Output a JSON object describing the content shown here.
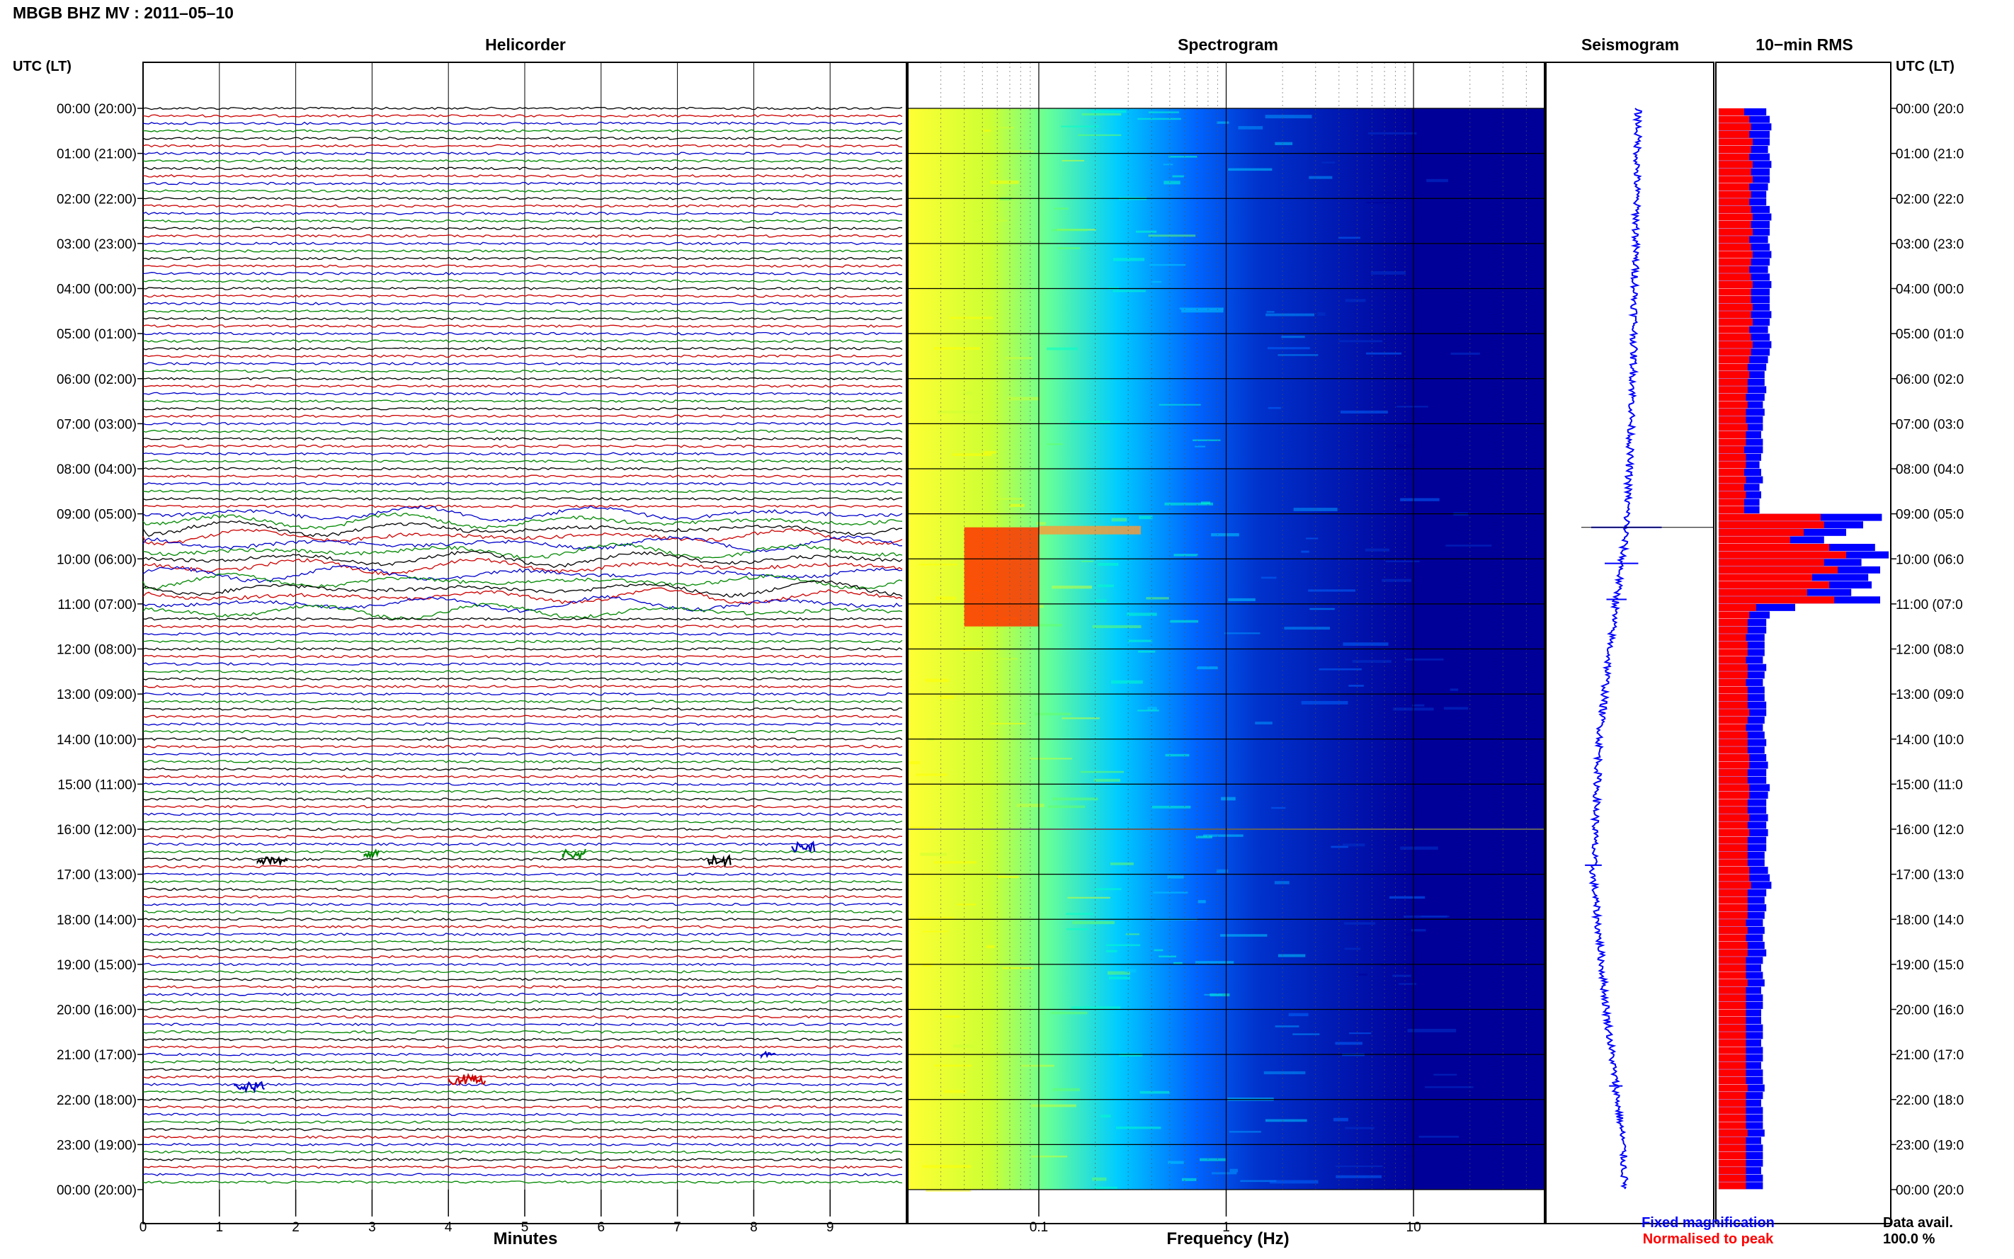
{
  "header": {
    "title": "MBGB BHZ MV : 2011–05–10"
  },
  "panels": {
    "helicorder": "Helicorder",
    "spectrogram": "Spectrogram",
    "seismogram": "Seismogram",
    "rms": "10−min RMS"
  },
  "axis_labels": {
    "utc_left": "UTC (LT)",
    "utc_right": "UTC (LT)",
    "minutes": "Minutes",
    "frequency": "Frequency (Hz)"
  },
  "legend": {
    "fixed": "Fixed magnification",
    "normalised": "Normalised to peak",
    "fixed_color": "#0000ff",
    "normalised_color": "#ff0000"
  },
  "data_avail": {
    "label": "Data avail.",
    "value": "100.0 %"
  },
  "colors": {
    "trace_cycle": [
      "#000000",
      "#cc0000",
      "#0000cc",
      "#008800"
    ],
    "spectrogram_low": "#ffff00",
    "spectrogram_mid": "#00ccff",
    "spectrogram_high": "#000099",
    "event_red": "#ff3300",
    "rms_fixed": "#0000ff",
    "rms_normalised": "#ff0000"
  },
  "time_ticks": [
    "00:00 (20:00)",
    "01:00 (21:00)",
    "02:00 (22:00)",
    "03:00 (23:00)",
    "04:00 (00:00)",
    "05:00 (01:00)",
    "06:00 (02:00)",
    "07:00 (03:00)",
    "08:00 (04:00)",
    "09:00 (05:00)",
    "10:00 (06:00)",
    "11:00 (07:00)",
    "12:00 (08:00)",
    "13:00 (09:00)",
    "14:00 (10:00)",
    "15:00 (11:00)",
    "16:00 (12:00)",
    "17:00 (13:00)",
    "18:00 (14:00)",
    "19:00 (15:00)",
    "20:00 (16:00)",
    "21:00 (17:00)",
    "22:00 (18:00)",
    "23:00 (19:00)",
    "00:00 (20:00)"
  ],
  "time_ticks_right": [
    "00:00 (20:0",
    "01:00 (21:0",
    "02:00 (22:0",
    "03:00 (23:0",
    "04:00 (00:0",
    "05:00 (01:0",
    "06:00 (02:0",
    "07:00 (03:0",
    "08:00 (04:0",
    "09:00 (05:0",
    "10:00 (06:0",
    "11:00 (07:0",
    "12:00 (08:0",
    "13:00 (09:0",
    "14:00 (10:0",
    "15:00 (11:0",
    "16:00 (12:0",
    "17:00 (13:0",
    "18:00 (14:0",
    "19:00 (15:0",
    "20:00 (16:0",
    "21:00 (17:0",
    "22:00 (18:0",
    "23:00 (19:0",
    "00:00 (20:0"
  ],
  "chart_data": {
    "type": "heatmap",
    "helicorder": {
      "x_ticks": [
        0,
        1,
        2,
        3,
        4,
        5,
        6,
        7,
        8,
        9
      ],
      "xlim": [
        0,
        10
      ],
      "rows_per_hour": 6,
      "active_window_hours": [
        9.0,
        11.2
      ],
      "events": [
        {
          "hour": 16.4,
          "minute": 8.5,
          "width_min": 0.3
        },
        {
          "hour": 16.55,
          "minute": 2.9,
          "width_min": 0.2
        },
        {
          "hour": 16.55,
          "minute": 5.5,
          "width_min": 0.3
        },
        {
          "hour": 16.7,
          "minute": 1.5,
          "width_min": 0.4
        },
        {
          "hour": 16.7,
          "minute": 7.4,
          "width_min": 0.3
        },
        {
          "hour": 21.0,
          "minute": 8.1,
          "width_min": 0.2
        },
        {
          "hour": 21.55,
          "minute": 4.0,
          "width_min": 0.5
        },
        {
          "hour": 21.7,
          "minute": 1.2,
          "width_min": 0.4
        }
      ]
    },
    "spectrogram": {
      "x_scale": "log",
      "x_ticks": [
        0.1,
        1,
        10
      ],
      "xlim": [
        0.02,
        50
      ],
      "ylim_hours": [
        0,
        24
      ],
      "event": {
        "hours": [
          9.3,
          11.5
        ],
        "freq_hz": [
          0.04,
          0.1
        ]
      }
    },
    "seismogram": {
      "offset_profile": [
        {
          "hour": 0,
          "offset": 0.55
        },
        {
          "hour": 6,
          "offset": 0.52
        },
        {
          "hour": 9.3,
          "offset": 0.48
        },
        {
          "hour": 12,
          "offset": 0.38
        },
        {
          "hour": 14,
          "offset": 0.32
        },
        {
          "hour": 17,
          "offset": 0.28
        },
        {
          "hour": 20,
          "offset": 0.36
        },
        {
          "hour": 23,
          "offset": 0.46
        },
        {
          "hour": 24,
          "offset": 0.47
        }
      ],
      "spikes": [
        {
          "hour": 9.3,
          "amplitude": 0.42
        },
        {
          "hour": 10.1,
          "amplitude": 0.2
        },
        {
          "hour": 10.9,
          "amplitude": 0.12
        },
        {
          "hour": 16.8,
          "amplitude": 0.1
        },
        {
          "hour": 21.7,
          "amplitude": 0.08
        }
      ]
    },
    "rms": {
      "bin_minutes": 10,
      "series": [
        {
          "name": "Fixed magnification",
          "values": [
            0.28,
            0.3,
            0.31,
            0.3,
            0.3,
            0.29,
            0.3,
            0.31,
            0.3,
            0.3,
            0.29,
            0.28,
            0.28,
            0.3,
            0.31,
            0.3,
            0.3,
            0.29,
            0.3,
            0.31,
            0.3,
            0.29,
            0.3,
            0.31,
            0.3,
            0.3,
            0.3,
            0.31,
            0.3,
            0.29,
            0.3,
            0.31,
            0.3,
            0.29,
            0.28,
            0.27,
            0.27,
            0.28,
            0.27,
            0.26,
            0.27,
            0.26,
            0.26,
            0.25,
            0.26,
            0.26,
            0.25,
            0.24,
            0.25,
            0.26,
            0.24,
            0.25,
            0.24,
            0.24,
            0.96,
            0.85,
            0.75,
            0.62,
            0.92,
            1.0,
            0.84,
            0.95,
            0.88,
            0.9,
            0.78,
            0.95,
            0.45,
            0.3,
            0.28,
            0.28,
            0.27,
            0.27,
            0.27,
            0.26,
            0.28,
            0.27,
            0.26,
            0.27,
            0.27,
            0.28,
            0.28,
            0.27,
            0.26,
            0.27,
            0.28,
            0.27,
            0.28,
            0.29,
            0.28,
            0.28,
            0.3,
            0.29,
            0.28,
            0.28,
            0.29,
            0.28,
            0.29,
            0.28,
            0.28,
            0.27,
            0.27,
            0.29,
            0.3,
            0.31,
            0.28,
            0.27,
            0.28,
            0.27,
            0.26,
            0.27,
            0.26,
            0.27,
            0.28,
            0.26,
            0.25,
            0.26,
            0.27,
            0.25,
            0.26,
            0.26,
            0.25,
            0.25,
            0.26,
            0.26,
            0.25,
            0.26,
            0.26,
            0.25,
            0.26,
            0.26,
            0.27,
            0.26,
            0.25,
            0.26,
            0.26,
            0.26,
            0.27,
            0.25,
            0.26,
            0.26,
            0.26,
            0.25,
            0.26,
            0.26
          ]
        },
        {
          "name": "Normalised to peak",
          "values": [
            0.15,
            0.18,
            0.19,
            0.18,
            0.2,
            0.19,
            0.18,
            0.2,
            0.19,
            0.2,
            0.18,
            0.19,
            0.18,
            0.19,
            0.2,
            0.19,
            0.2,
            0.18,
            0.19,
            0.2,
            0.19,
            0.18,
            0.19,
            0.2,
            0.19,
            0.19,
            0.2,
            0.19,
            0.2,
            0.18,
            0.19,
            0.2,
            0.19,
            0.18,
            0.17,
            0.18,
            0.17,
            0.17,
            0.16,
            0.17,
            0.16,
            0.16,
            0.17,
            0.16,
            0.16,
            0.15,
            0.16,
            0.16,
            0.15,
            0.16,
            0.15,
            0.16,
            0.15,
            0.15,
            0.6,
            0.62,
            0.5,
            0.42,
            0.65,
            0.75,
            0.62,
            0.7,
            0.55,
            0.65,
            0.52,
            0.68,
            0.22,
            0.18,
            0.17,
            0.17,
            0.16,
            0.17,
            0.17,
            0.16,
            0.17,
            0.17,
            0.16,
            0.17,
            0.17,
            0.17,
            0.18,
            0.17,
            0.16,
            0.17,
            0.17,
            0.17,
            0.18,
            0.18,
            0.17,
            0.17,
            0.18,
            0.18,
            0.17,
            0.17,
            0.18,
            0.17,
            0.18,
            0.17,
            0.17,
            0.17,
            0.17,
            0.18,
            0.18,
            0.19,
            0.17,
            0.17,
            0.17,
            0.17,
            0.16,
            0.17,
            0.16,
            0.17,
            0.17,
            0.16,
            0.16,
            0.16,
            0.17,
            0.16,
            0.16,
            0.16,
            0.16,
            0.16,
            0.16,
            0.16,
            0.16,
            0.16,
            0.16,
            0.16,
            0.16,
            0.16,
            0.17,
            0.16,
            0.16,
            0.16,
            0.16,
            0.16,
            0.17,
            0.16,
            0.16,
            0.16,
            0.16,
            0.16,
            0.16,
            0.16
          ]
        }
      ]
    }
  }
}
